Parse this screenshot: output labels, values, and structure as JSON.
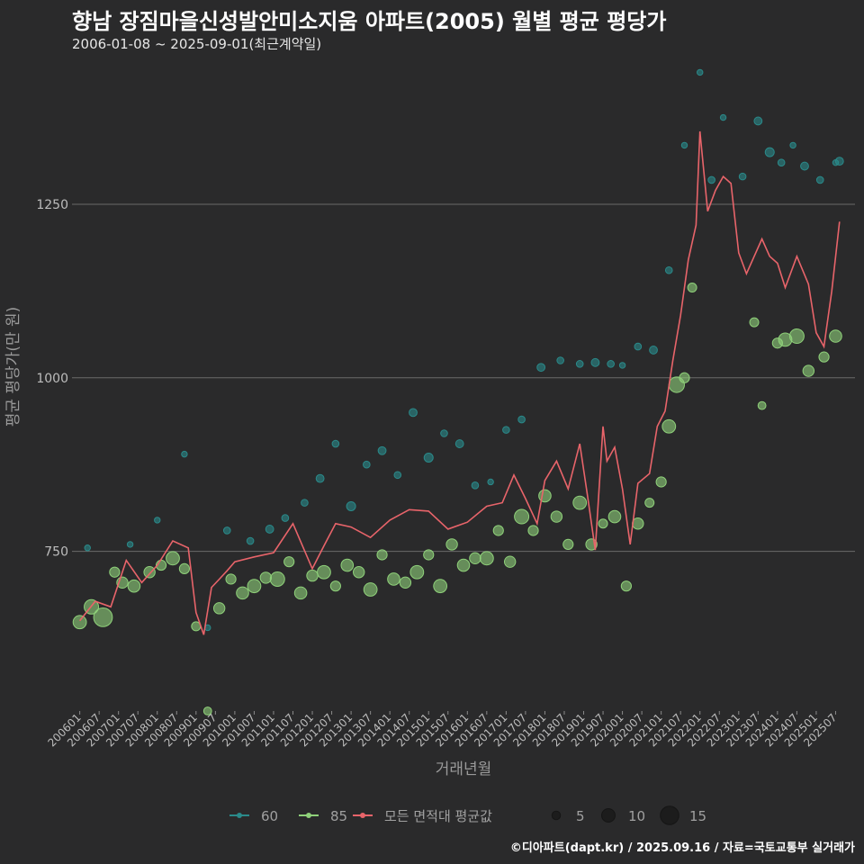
{
  "chart_data": {
    "type": "scatter",
    "title": "향남 장짐마을신성발안미소지움 아파트(2005) 월별 평균 평당가",
    "subtitle": "2006-01-08 ~ 2025-09-01(최근계약일)",
    "xlabel": "거래년월",
    "ylabel": "평균 평당가(만 원)",
    "ylim": [
      520,
      1460
    ],
    "yticks": [
      750,
      1000,
      1250
    ],
    "grid": true,
    "legend_position": "bottom",
    "colors": {
      "s60": "#2a8a8a",
      "s85": "#8fd17a",
      "avg": "#e8646a",
      "size": "#1c1c1c"
    },
    "x_tick_labels": [
      "200601",
      "200607",
      "200701",
      "200707",
      "200801",
      "200807",
      "200901",
      "200907",
      "201001",
      "201007",
      "201101",
      "201107",
      "201201",
      "201207",
      "201301",
      "201307",
      "201401",
      "201407",
      "201501",
      "201507",
      "201601",
      "201607",
      "201701",
      "201707",
      "201801",
      "201807",
      "201901",
      "201907",
      "202001",
      "202007",
      "202101",
      "202107",
      "202201",
      "202207",
      "202301",
      "202307",
      "202401",
      "202407",
      "202501",
      "202507"
    ],
    "legend": {
      "series": [
        {
          "label": "60",
          "color_key": "s60"
        },
        {
          "label": "85",
          "color_key": "s85"
        },
        {
          "label": "모든 면적대 평균값",
          "color_key": "avg"
        }
      ],
      "sizes": [
        {
          "label": "5",
          "value": 5
        },
        {
          "label": "10",
          "value": 10
        },
        {
          "label": "15",
          "value": 15
        }
      ]
    },
    "series": [
      {
        "name": "모든 면적대 평균값",
        "x": [
          2006.0,
          2006.4,
          2006.8,
          2007.2,
          2007.6,
          2008.0,
          2008.4,
          2008.8,
          2009.0,
          2009.2,
          2009.4,
          2009.6,
          2009.8,
          2010.0,
          2010.5,
          2011.0,
          2011.5,
          2012.0,
          2012.3,
          2012.6,
          2013.0,
          2013.5,
          2014.0,
          2014.5,
          2015.0,
          2015.5,
          2016.0,
          2016.5,
          2016.9,
          2017.2,
          2017.5,
          2017.8,
          2018.0,
          2018.3,
          2018.6,
          2018.9,
          2019.1,
          2019.3,
          2019.5,
          2019.6,
          2019.8,
          2020.0,
          2020.2,
          2020.4,
          2020.7,
          2020.9,
          2021.1,
          2021.3,
          2021.5,
          2021.7,
          2021.9,
          2022.0,
          2022.2,
          2022.4,
          2022.6,
          2022.8,
          2023.0,
          2023.2,
          2023.4,
          2023.6,
          2023.8,
          2024.0,
          2024.2,
          2024.5,
          2024.8,
          2025.0,
          2025.2,
          2025.4,
          2025.6
        ],
        "values": [
          650,
          678,
          670,
          737,
          705,
          730,
          765,
          755,
          662,
          630,
          698,
          710,
          722,
          735,
          742,
          748,
          790,
          725,
          758,
          790,
          785,
          770,
          795,
          810,
          808,
          782,
          792,
          815,
          820,
          860,
          826,
          790,
          852,
          880,
          840,
          905,
          830,
          752,
          930,
          880,
          900,
          840,
          760,
          848,
          862,
          930,
          952,
          1025,
          1090,
          1170,
          1220,
          1355,
          1240,
          1270,
          1290,
          1280,
          1180,
          1150,
          1175,
          1200,
          1175,
          1165,
          1130,
          1175,
          1135,
          1065,
          1045,
          1125,
          1225
        ]
      },
      {
        "name": "60",
        "x": [
          2006.2,
          2007.3,
          2008.0,
          2008.7,
          2009.3,
          2009.8,
          2010.4,
          2010.9,
          2011.3,
          2011.8,
          2012.2,
          2012.6,
          2013.0,
          2013.4,
          2013.8,
          2014.2,
          2014.6,
          2015.0,
          2015.4,
          2015.8,
          2016.2,
          2016.6,
          2017.0,
          2017.4,
          2017.9,
          2018.4,
          2018.9,
          2019.3,
          2019.7,
          2020.0,
          2020.4,
          2020.8,
          2021.2,
          2021.6,
          2022.0,
          2022.3,
          2022.6,
          2023.1,
          2023.5,
          2023.8,
          2024.1,
          2024.4,
          2024.7,
          2025.1,
          2025.5,
          2025.6
        ],
        "values": [
          755,
          760,
          795,
          890,
          640,
          780,
          765,
          782,
          798,
          820,
          855,
          905,
          815,
          875,
          895,
          860,
          950,
          885,
          920,
          905,
          845,
          850,
          925,
          940,
          1015,
          1025,
          1020,
          1022,
          1020,
          1018,
          1045,
          1040,
          1155,
          1335,
          1440,
          1285,
          1375,
          1290,
          1370,
          1325,
          1310,
          1335,
          1305,
          1285,
          1310,
          1312
        ],
        "sizes": [
          2,
          2,
          2,
          2,
          2,
          3,
          3,
          4,
          3,
          3,
          4,
          3,
          5,
          3,
          4,
          3,
          4,
          5,
          3,
          4,
          3,
          2,
          3,
          3,
          4,
          3,
          3,
          4,
          3,
          2,
          3,
          4,
          3,
          2,
          2,
          3,
          2,
          3,
          4,
          5,
          3,
          2,
          4,
          3,
          2,
          4
        ]
      },
      {
        "name": "85",
        "x": [
          2006.0,
          2006.3,
          2006.6,
          2006.9,
          2007.1,
          2007.4,
          2007.8,
          2008.1,
          2008.4,
          2008.7,
          2009.0,
          2009.3,
          2009.6,
          2009.9,
          2010.2,
          2010.5,
          2010.8,
          2011.1,
          2011.4,
          2011.7,
          2012.0,
          2012.3,
          2012.6,
          2012.9,
          2013.2,
          2013.5,
          2013.8,
          2014.1,
          2014.4,
          2014.7,
          2015.0,
          2015.3,
          2015.6,
          2015.9,
          2016.2,
          2016.5,
          2016.8,
          2017.1,
          2017.4,
          2017.7,
          2018.0,
          2018.3,
          2018.6,
          2018.9,
          2019.2,
          2019.5,
          2019.8,
          2020.1,
          2020.4,
          2020.7,
          2021.0,
          2021.2,
          2021.4,
          2021.6,
          2021.8,
          2023.4,
          2023.6,
          2024.0,
          2024.2,
          2024.5,
          2024.8,
          2025.2,
          2025.5
        ],
        "values": [
          648,
          670,
          655,
          720,
          705,
          700,
          720,
          730,
          740,
          725,
          642,
          520,
          668,
          710,
          690,
          700,
          712,
          710,
          735,
          690,
          715,
          720,
          700,
          730,
          720,
          695,
          745,
          710,
          705,
          720,
          745,
          700,
          760,
          730,
          740,
          740,
          780,
          735,
          800,
          780,
          830,
          800,
          760,
          820,
          760,
          790,
          800,
          700,
          790,
          820,
          850,
          930,
          990,
          1000,
          1130,
          1080,
          960,
          1050,
          1055,
          1060,
          1010,
          1030,
          1060
        ],
        "sizes": [
          9,
          10,
          14,
          6,
          7,
          8,
          7,
          6,
          9,
          6,
          5,
          4,
          7,
          6,
          8,
          9,
          7,
          10,
          6,
          8,
          7,
          9,
          6,
          8,
          7,
          9,
          6,
          8,
          7,
          9,
          6,
          9,
          7,
          8,
          7,
          9,
          6,
          7,
          10,
          6,
          8,
          7,
          6,
          9,
          7,
          5,
          8,
          6,
          7,
          5,
          6,
          9,
          11,
          6,
          5,
          5,
          4,
          6,
          9,
          10,
          7,
          6,
          8
        ]
      }
    ],
    "source": "©디아파트(dapt.kr) / 2025.09.16 / 자료=국토교통부 실거래가"
  }
}
